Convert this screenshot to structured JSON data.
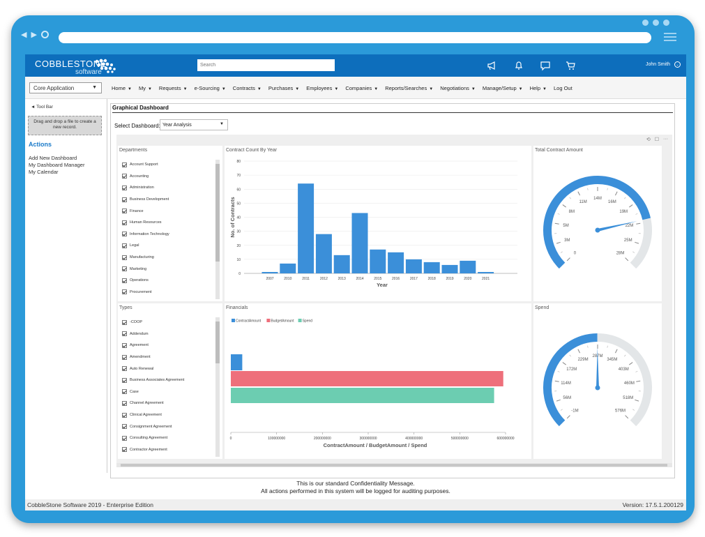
{
  "app": {
    "brand_name": "COBBLESTONE",
    "brand_sub": "software",
    "search_placeholder": "Search",
    "user_name": "John Smith"
  },
  "menubar": {
    "app_select": "Core Application",
    "items": [
      "Home",
      "My",
      "Requests",
      "e-Sourcing",
      "Contracts",
      "Purchases",
      "Employees",
      "Companies",
      "Reports/Searches",
      "Negotiations",
      "Manage/Setup",
      "Help",
      "Log Out"
    ]
  },
  "sidebar": {
    "toolbar_link": "◄ Tool Bar",
    "dropzone_line1": "Drag and drop a file to create a",
    "dropzone_line2": "new record.",
    "actions_title": "Actions",
    "actions": [
      "Add New Dashboard",
      "My Dashboard Manager",
      "My Calendar"
    ]
  },
  "dashboard": {
    "title": "Graphical Dashboard",
    "select_label": "Select Dashboard:",
    "selected": "Year Analysis",
    "departments": {
      "title": "Departments",
      "items": [
        "Account Support",
        "Accounting",
        "Administration",
        "Business Development",
        "Finance",
        "Human Resources",
        "Information Technology",
        "Legal",
        "Manufacturing",
        "Marketing",
        "Operations",
        "Procurement"
      ]
    },
    "types": {
      "title": "Types",
      "items": [
        "-COOP",
        "Addendum",
        "Agreement",
        "Amendment",
        "Auto Renewal",
        "Business Associates Agreement",
        "Case",
        "Channel Agreement",
        "Clinical Agreement",
        "Consignment Agreement",
        "Consulting Agreement",
        "Contractor Agreement"
      ]
    },
    "total_contract_amount": {
      "title": "Total Contract Amount"
    },
    "spend": {
      "title": "Spend"
    }
  },
  "chart_data": [
    {
      "type": "bar",
      "title": "Contract Count By Year",
      "xlabel": "Year",
      "ylabel": "No. of Contracts",
      "ylim": [
        0,
        80
      ],
      "yticks": [
        0,
        10,
        20,
        30,
        40,
        50,
        60,
        70,
        80
      ],
      "categories": [
        "2007",
        "2010",
        "2011",
        "2012",
        "2013",
        "2014",
        "2015",
        "2016",
        "2017",
        "2018",
        "2019",
        "2020",
        "2021"
      ],
      "values": [
        1,
        7,
        64,
        28,
        13,
        43,
        17,
        15,
        10,
        8,
        6,
        9,
        1
      ],
      "color": "#3b8fd9"
    },
    {
      "type": "bar",
      "orientation": "horizontal",
      "title": "Financials",
      "xlabel": "ContractAmount / BudgetAmount / Spend",
      "xlim": [
        0,
        600000000
      ],
      "xticks": [
        "0",
        "100000000",
        "200000000",
        "300000000",
        "400000000",
        "500000000",
        "600000000"
      ],
      "series": [
        {
          "name": "ContractAmount",
          "value": 25000000,
          "color": "#3b8fd9"
        },
        {
          "name": "BudgetAmount",
          "value": 595000000,
          "color": "#ee6f7b"
        },
        {
          "name": "Spend",
          "value": 575000000,
          "color": "#6ccdb1"
        }
      ]
    },
    {
      "type": "gauge",
      "title": "Total Contract Amount",
      "tick_labels": [
        "0",
        "3M",
        "5M",
        "8M",
        "11M",
        "14M",
        "16M",
        "19M",
        "22M",
        "25M",
        "28M"
      ],
      "min": 0,
      "max": 28000000,
      "value": 22000000,
      "color": "#3b8fd9"
    },
    {
      "type": "gauge",
      "title": "Spend",
      "tick_labels": [
        "-1M",
        "56M",
        "114M",
        "172M",
        "229M",
        "287M",
        "345M",
        "403M",
        "460M",
        "518M",
        "576M"
      ],
      "min": -1000000,
      "max": 576000000,
      "value": 287000000,
      "color": "#3b8fd9"
    }
  ],
  "footer": {
    "msg1": "This is our standard Confidentiality Message.",
    "msg2": "All actions performed in this system will be logged for auditing purposes.",
    "left": "CobbleStone Software 2019 - Enterprise Edition",
    "right": "Version: 17.5.1.200129"
  }
}
